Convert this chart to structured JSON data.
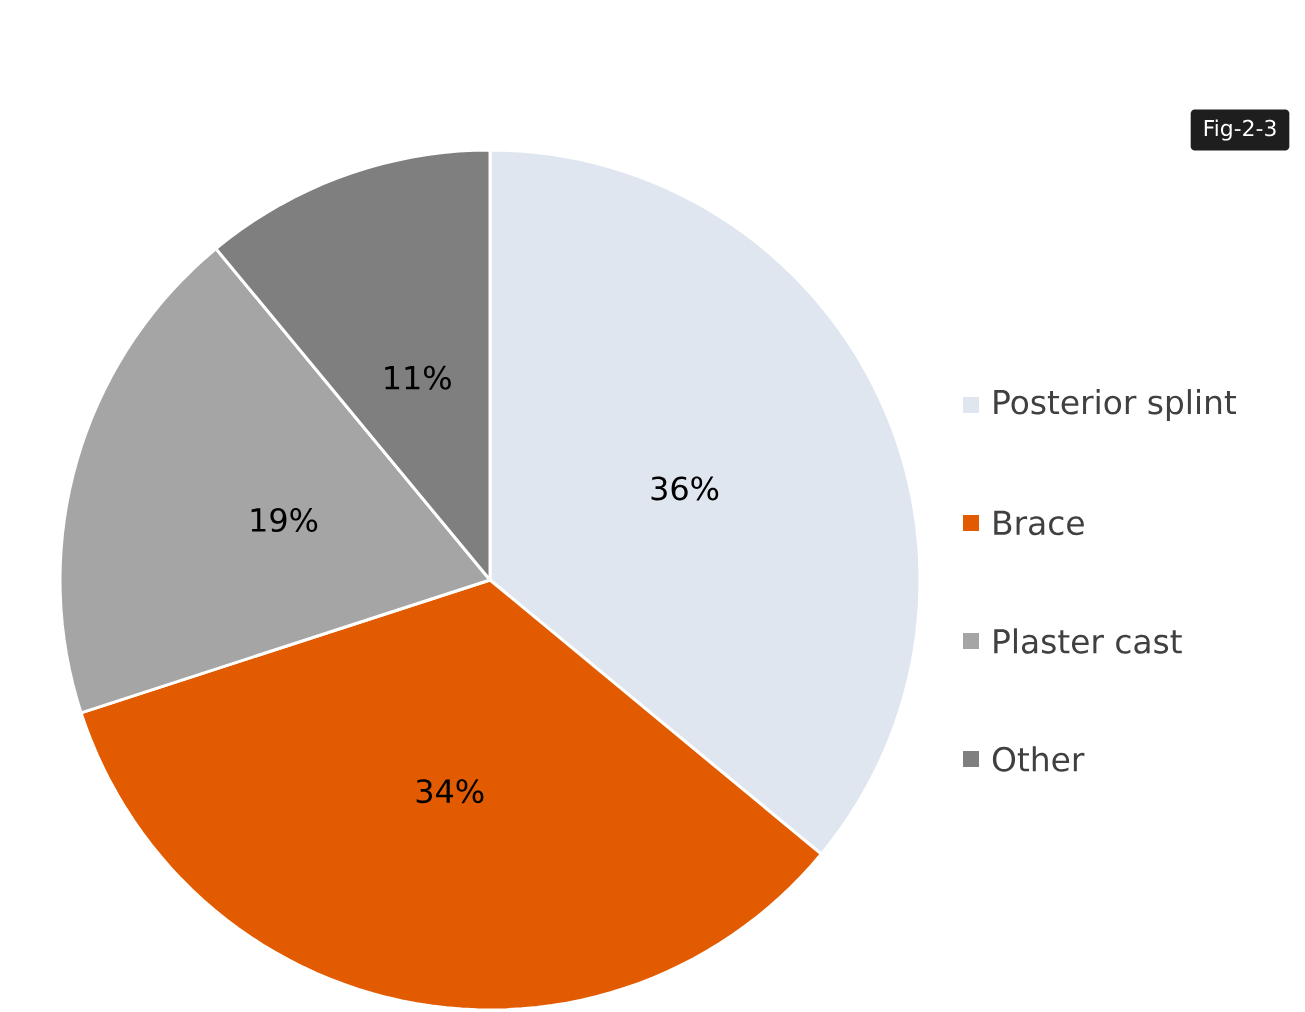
{
  "chart_data": {
    "type": "pie",
    "title": "Fig-2-3",
    "categories": [
      "Posterior splint",
      "Brace",
      "Plaster cast",
      "Other"
    ],
    "values": [
      36,
      34,
      19,
      11
    ],
    "colors": [
      "#dfe6ef",
      "#e35b00",
      "#a5a5a5",
      "#7f7f7f"
    ],
    "value_labels": [
      "36%",
      "34%",
      "19%",
      "11%"
    ],
    "legend": "right"
  }
}
